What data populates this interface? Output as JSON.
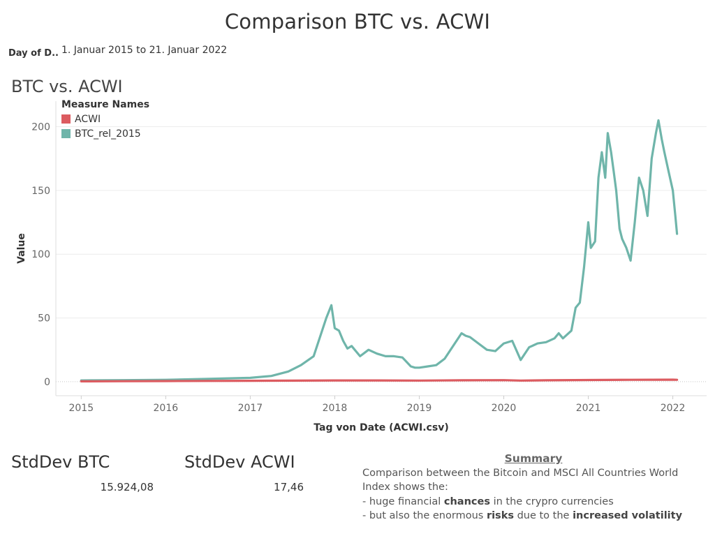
{
  "dashboard": {
    "title": "Comparison BTC vs. ACWI"
  },
  "filter": {
    "label": "Day of D..",
    "value": "1. Januar 2015 to 21. Januar 2022"
  },
  "sheet": {
    "title": "BTC vs. ACWI"
  },
  "legend": {
    "title": "Measure Names",
    "items": [
      {
        "label": "ACWI",
        "color": "#dc5b60"
      },
      {
        "label": "BTC_rel_2015",
        "color": "#6fb5aa"
      }
    ]
  },
  "kpis": [
    {
      "title": "StdDev BTC",
      "value": "15.924,08"
    },
    {
      "title": "StdDev ACWI",
      "value": "17,46"
    }
  ],
  "summary": {
    "heading": "Summary",
    "intro": "Comparison between the Bitcoin and MSCI All Countries World Index shows the:",
    "line1_a": "- huge financial ",
    "line1_b": "chances",
    "line1_c": " in the crypro currencies",
    "line2_a": "- but also the enormous ",
    "line2_b": "risks",
    "line2_c": " due to the ",
    "line2_d": "increased volatility"
  },
  "chart_data": {
    "type": "line",
    "xlabel": "Tag von Date (ACWI.csv)",
    "ylabel": "Value",
    "xlim": [
      2014.7,
      2022.4
    ],
    "ylim": [
      -11,
      220
    ],
    "x_ticks": [
      2015,
      2016,
      2017,
      2018,
      2019,
      2020,
      2021,
      2022
    ],
    "x_tick_labels": [
      "2015",
      "2016",
      "2017",
      "2018",
      "2019",
      "2020",
      "2021",
      "2022"
    ],
    "y_ticks": [
      0,
      50,
      100,
      150,
      200
    ],
    "y_tick_labels": [
      "0",
      "50",
      "100",
      "150",
      "200"
    ],
    "grid": true,
    "legend_position": "top-left",
    "series": [
      {
        "name": "ACWI",
        "color": "#dc5b60",
        "x": [
          2015.0,
          2015.5,
          2016.0,
          2016.5,
          2017.0,
          2017.5,
          2018.0,
          2018.5,
          2019.0,
          2019.5,
          2020.0,
          2020.2,
          2020.5,
          2021.0,
          2021.5,
          2022.0,
          2022.05
        ],
        "y": [
          0.3,
          0.4,
          0.5,
          0.6,
          0.7,
          0.8,
          1.0,
          1.0,
          0.9,
          1.1,
          1.2,
          0.9,
          1.1,
          1.3,
          1.5,
          1.6,
          1.5
        ]
      },
      {
        "name": "BTC_rel_2015",
        "color": "#6fb5aa",
        "x": [
          2015.0,
          2015.5,
          2016.0,
          2016.5,
          2017.0,
          2017.25,
          2017.45,
          2017.6,
          2017.75,
          2017.9,
          2017.96,
          2018.0,
          2018.05,
          2018.1,
          2018.15,
          2018.2,
          2018.3,
          2018.4,
          2018.5,
          2018.6,
          2018.7,
          2018.8,
          2018.9,
          2018.95,
          2019.0,
          2019.1,
          2019.2,
          2019.3,
          2019.4,
          2019.5,
          2019.55,
          2019.6,
          2019.7,
          2019.8,
          2019.9,
          2020.0,
          2020.1,
          2020.18,
          2020.2,
          2020.3,
          2020.4,
          2020.5,
          2020.6,
          2020.65,
          2020.7,
          2020.8,
          2020.85,
          2020.9,
          2020.95,
          2021.0,
          2021.03,
          2021.08,
          2021.12,
          2021.16,
          2021.2,
          2021.23,
          2021.27,
          2021.3,
          2021.33,
          2021.37,
          2021.4,
          2021.45,
          2021.5,
          2021.55,
          2021.6,
          2021.65,
          2021.7,
          2021.75,
          2021.8,
          2021.83,
          2021.87,
          2021.9,
          2021.95,
          2022.0,
          2022.03,
          2022.05
        ],
        "y": [
          1.0,
          1.2,
          1.5,
          2.2,
          3.0,
          4.5,
          8.0,
          13.0,
          20.0,
          50.0,
          60.0,
          42.0,
          40.0,
          32.0,
          26.0,
          28.0,
          20.0,
          25.0,
          22.0,
          20.0,
          20.0,
          19.0,
          12.0,
          11.0,
          11.0,
          12.0,
          13.0,
          18.0,
          28.0,
          38.0,
          36.0,
          35.0,
          30.0,
          25.0,
          24.0,
          30.0,
          32.0,
          20.0,
          17.0,
          27.0,
          30.0,
          31.0,
          34.0,
          38.0,
          34.0,
          40.0,
          58.0,
          62.0,
          90.0,
          125.0,
          105.0,
          110.0,
          160.0,
          180.0,
          160.0,
          195.0,
          180.0,
          165.0,
          150.0,
          120.0,
          112.0,
          105.0,
          95.0,
          125.0,
          160.0,
          150.0,
          130.0,
          175.0,
          195.0,
          205.0,
          190.0,
          180.0,
          165.0,
          150.0,
          130.0,
          116.0
        ]
      }
    ]
  }
}
